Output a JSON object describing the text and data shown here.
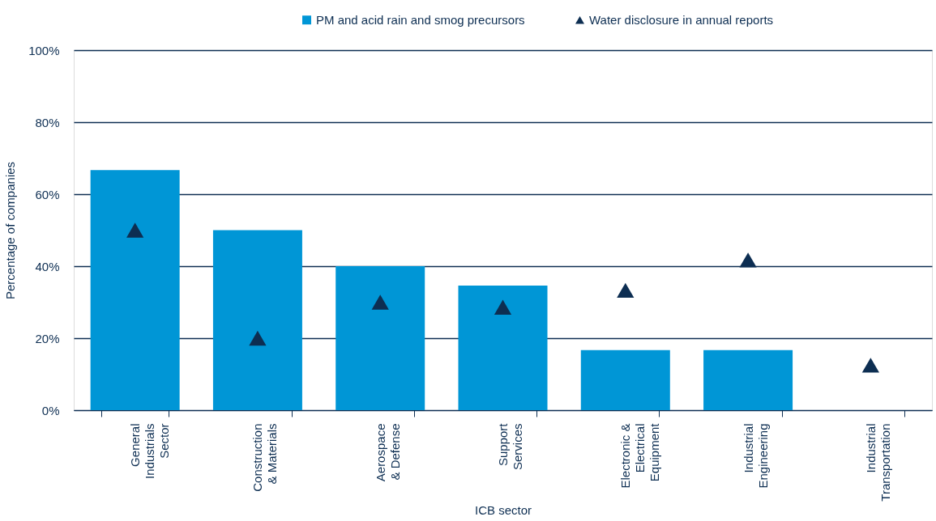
{
  "chart_data": {
    "type": "bar",
    "xlabel": "ICB sector",
    "ylabel": "Percentage of companies",
    "categories": [
      "General\nIndustrials\nSector",
      "Construction\n& Materials",
      "Aerospace\n& Defense",
      "Support\nServices",
      "Electronic &\nElectrical\nEquipment",
      "Industrial\nEngineering",
      "Industrial\nTransportation"
    ],
    "series": [
      {
        "name": "PM and acid rain and smog precursors",
        "color": "#0096d6",
        "values": [
          66.7,
          50,
          40,
          34.6,
          16.7,
          16.7,
          0
        ]
      },
      {
        "name": "Water disclosure in annual reports",
        "type": "scatter",
        "marker": "triangle",
        "color": "#0d2e52",
        "values": [
          50,
          20,
          30,
          28.6,
          33.3,
          41.7,
          12.5
        ]
      }
    ],
    "ylim": [
      0,
      100
    ],
    "yticks": [
      {
        "value": 0,
        "label": "0%"
      },
      {
        "value": 20,
        "label": "20%"
      },
      {
        "value": 40,
        "label": "40%"
      },
      {
        "value": 60,
        "label": "60%"
      },
      {
        "value": 80,
        "label": "80%"
      },
      {
        "value": 100,
        "label": "100%"
      }
    ],
    "grid": "y",
    "legend": "top"
  }
}
